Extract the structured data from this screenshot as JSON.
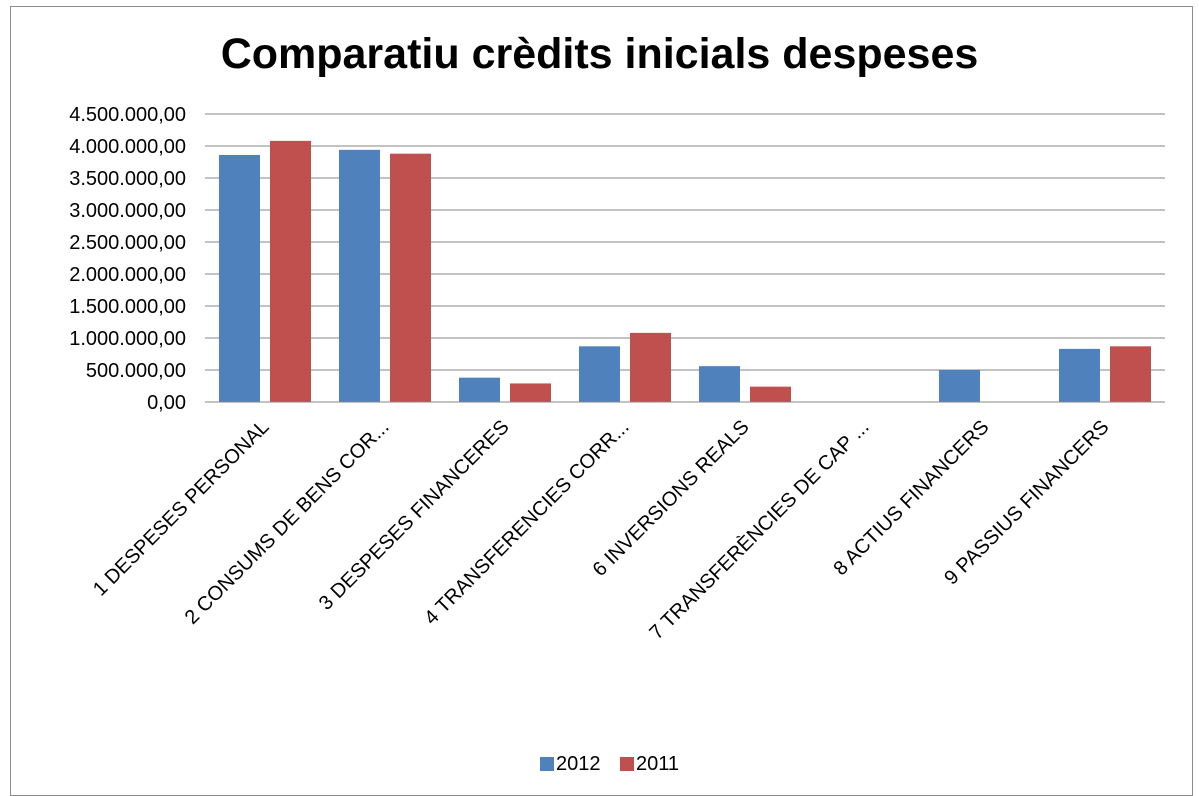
{
  "chart_data": {
    "type": "bar",
    "title": "Comparatiu crèdits inicials despeses",
    "categories": [
      "1 DESPESES PERSONAL",
      "2 CONSUMS DE BENS COR...",
      "3 DESPESES FINANCERES",
      "4 TRANSFERENCIES CORR...",
      "6 INVERSIONS REALS",
      "7 TRANSFERÈNCIES DE CAP ...",
      "8 ACTIUS FINANCERS",
      "9 PASSIUS FINANCERS"
    ],
    "series": [
      {
        "name": "2012",
        "color": "#4f81bd",
        "values": [
          3860000,
          3940000,
          380000,
          870000,
          560000,
          0,
          500000,
          830000
        ]
      },
      {
        "name": "2011",
        "color": "#c0504d",
        "values": [
          4080000,
          3880000,
          290000,
          1080000,
          240000,
          0,
          0,
          870000
        ]
      }
    ],
    "ylim": [
      0,
      4500000
    ],
    "ytick_labels": [
      "0,00",
      "500.000,00",
      "1.000.000,00",
      "1.500.000,00",
      "2.000.000,00",
      "2.500.000,00",
      "3.000.000,00",
      "3.500.000,00",
      "4.000.000,00",
      "4.500.000,00"
    ],
    "grid": true,
    "legend_position": "bottom"
  }
}
